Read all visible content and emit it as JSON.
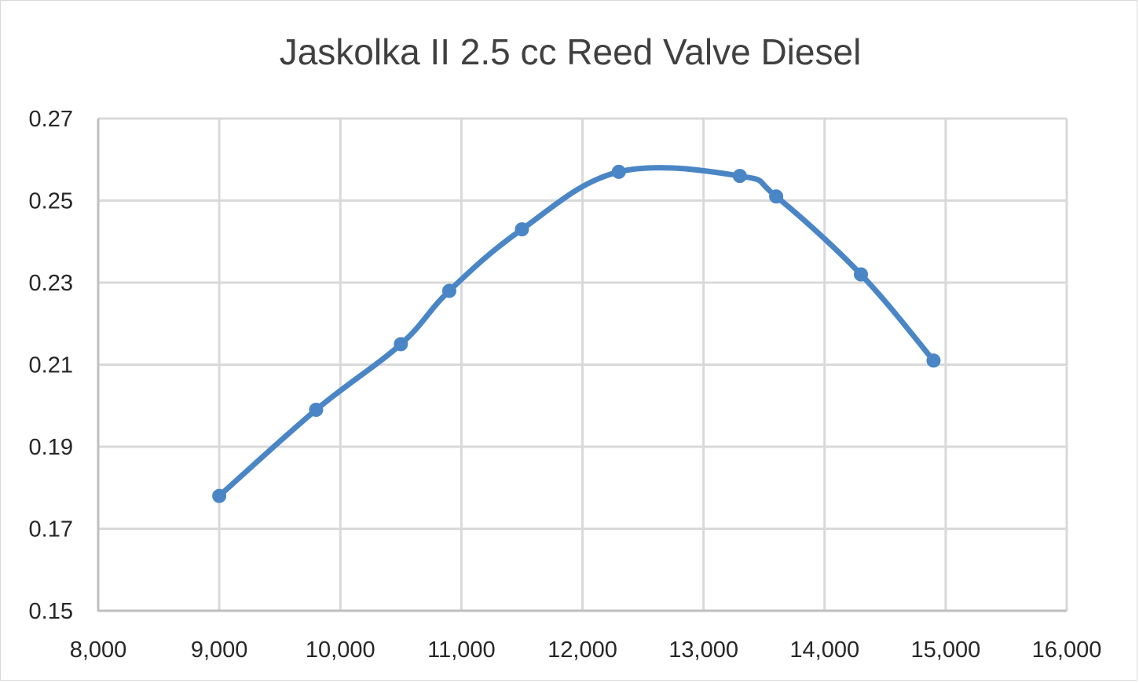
{
  "chart_data": {
    "type": "line",
    "title": "Jaskolka II 2.5 cc Reed Valve Diesel",
    "xlabel": "",
    "ylabel": "",
    "xlim": [
      8000,
      16000
    ],
    "ylim": [
      0.15,
      0.27
    ],
    "x_ticks": [
      "8,000",
      "9,000",
      "10,000",
      "11,000",
      "12,000",
      "13,000",
      "14,000",
      "15,000",
      "16,000"
    ],
    "y_ticks": [
      "0.27",
      "0.25",
      "0.23",
      "0.21",
      "0.19",
      "0.17",
      "0.15"
    ],
    "grid": true,
    "smooth": true,
    "series": [
      {
        "color": "#4a86c5",
        "x": [
          9000,
          9800,
          10500,
          10900,
          11500,
          12300,
          13300,
          13600,
          14300,
          14900
        ],
        "y": [
          0.178,
          0.199,
          0.215,
          0.228,
          0.243,
          0.257,
          0.256,
          0.251,
          0.232,
          0.211
        ]
      }
    ]
  }
}
